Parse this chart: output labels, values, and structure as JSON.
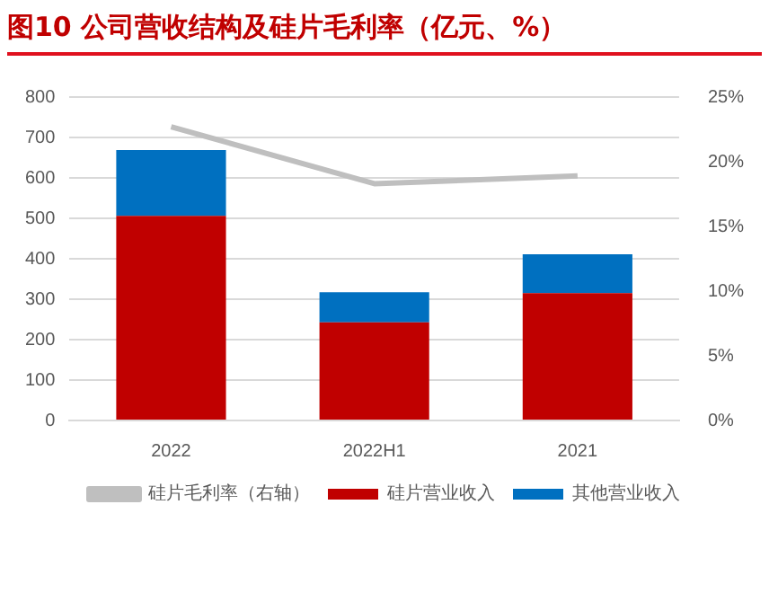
{
  "chart_data": {
    "type": "bar",
    "title": "图10  公司营收结构及硅片毛利率（亿元、%）",
    "categories": [
      "2022",
      "2022H1",
      "2021"
    ],
    "stacked": true,
    "series": [
      {
        "name": "硅片营业收入",
        "color": "#c00000",
        "values": [
          506,
          243,
          315
        ]
      },
      {
        "name": "其他营业收入",
        "color": "#0070c0",
        "values": [
          163,
          74,
          96
        ]
      },
      {
        "name": "硅片毛利率（右轴）",
        "color": "#bfbfbf",
        "type": "line",
        "axis": "y2",
        "values": [
          22.7,
          18.3,
          18.9
        ]
      }
    ],
    "ylim": [
      0,
      800
    ],
    "yticks": [
      0,
      100,
      200,
      300,
      400,
      500,
      600,
      700,
      800
    ],
    "y2lim": [
      0,
      25
    ],
    "y2ticks": [
      {
        "value": 0,
        "label": "0%"
      },
      {
        "value": 5,
        "label": "5%"
      },
      {
        "value": 10,
        "label": "10%"
      },
      {
        "value": 15,
        "label": "15%"
      },
      {
        "value": 20,
        "label": "20%"
      },
      {
        "value": 25,
        "label": "25%"
      }
    ],
    "grid": "y",
    "legend": "bottom",
    "marker": "none"
  }
}
